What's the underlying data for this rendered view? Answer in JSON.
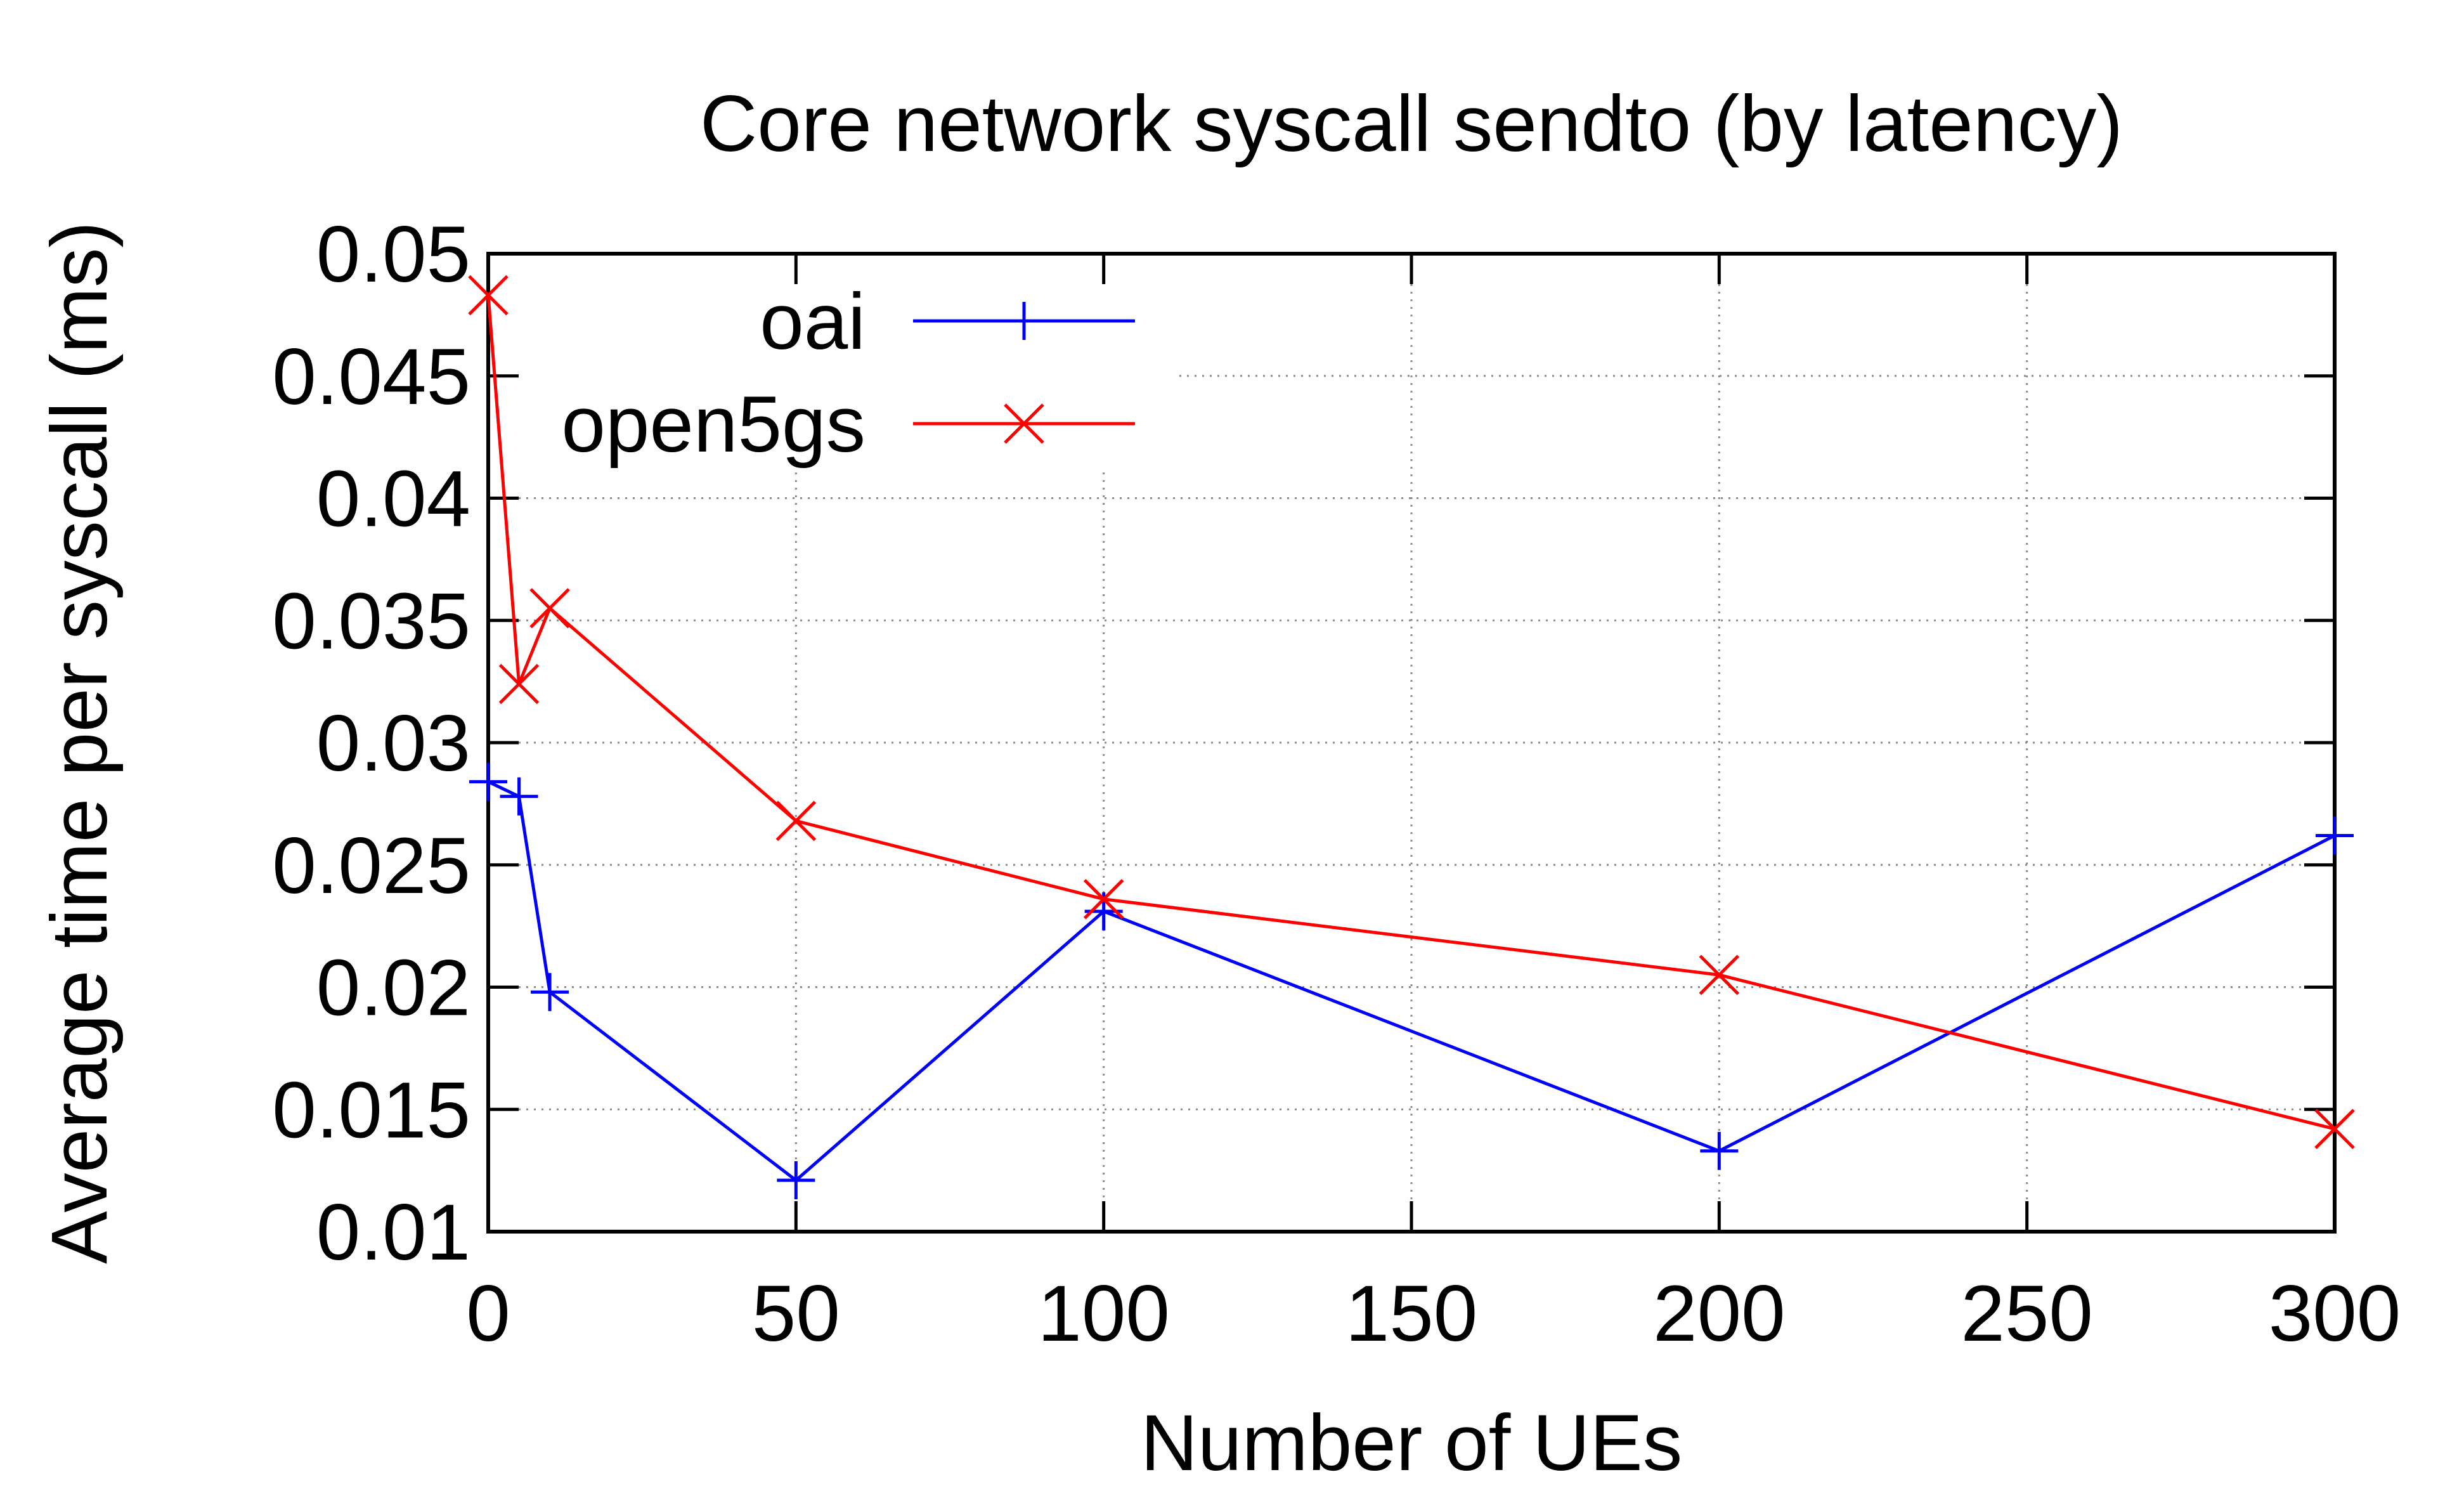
{
  "chart_data": {
    "type": "line",
    "title": "Core network syscall sendto (by latency)",
    "xlabel": "Number of UEs",
    "ylabel": "Average time per syscall (ms)",
    "xlim": [
      0,
      300
    ],
    "ylim": [
      0.01,
      0.05
    ],
    "xticks": [
      "0",
      "50",
      "100",
      "150",
      "200",
      "250",
      "300"
    ],
    "yticks": [
      "0.01",
      "0.015",
      "0.02",
      "0.025",
      "0.03",
      "0.035",
      "0.04",
      "0.045",
      "0.05"
    ],
    "grid": true,
    "legend_position": "top-left",
    "series": [
      {
        "name": "oai",
        "color": "#0000ff",
        "marker": "plus",
        "x": [
          0,
          5,
          10,
          50,
          100,
          200,
          300
        ],
        "y": [
          0.0284,
          0.0278,
          0.0198,
          0.0121,
          0.0231,
          0.0133,
          0.0262
        ]
      },
      {
        "name": "open5gs",
        "color": "#ff0000",
        "marker": "cross",
        "x": [
          0,
          5,
          10,
          50,
          100,
          200,
          300
        ],
        "y": [
          0.0483,
          0.0324,
          0.0355,
          0.0268,
          0.0236,
          0.0205,
          0.0142
        ]
      }
    ]
  }
}
